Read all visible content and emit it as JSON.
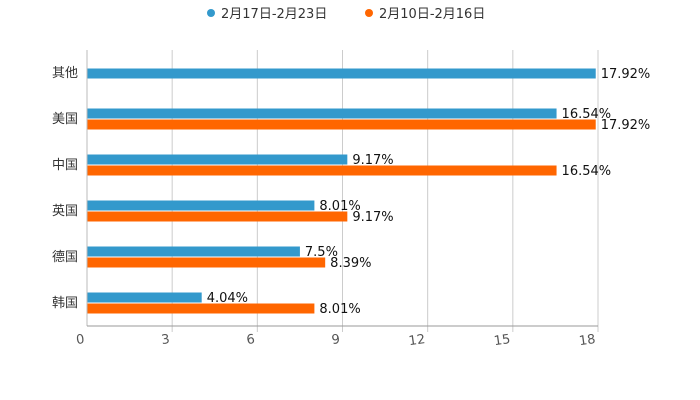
{
  "chart_data": {
    "type": "bar",
    "orientation": "horizontal",
    "categories": [
      "其他",
      "美国",
      "中国",
      "英国",
      "德国",
      "韩国"
    ],
    "series": [
      {
        "name": "2月17日-2月23日",
        "color": "#3399cc",
        "values": [
          17.92,
          16.54,
          9.17,
          8.01,
          7.5,
          4.04
        ],
        "labels": [
          "17.92%",
          "16.54%",
          "9.17%",
          "8.01%",
          "7.5%",
          "4.04%"
        ]
      },
      {
        "name": "2月10日-2月16日",
        "color": "#ff6600",
        "values": [
          null,
          17.92,
          16.54,
          9.17,
          8.39,
          8.01
        ],
        "labels": [
          "",
          "17.92%",
          "16.54%",
          "9.17%",
          "8.39%",
          "8.01%"
        ]
      }
    ],
    "xlim": [
      0,
      18
    ],
    "xticks": [
      0,
      3,
      6,
      9,
      12,
      15,
      18
    ],
    "xtick_labels": [
      "0",
      "3",
      "6",
      "9",
      "12",
      "15",
      "18"
    ],
    "grid": true,
    "legend": "top-center"
  }
}
